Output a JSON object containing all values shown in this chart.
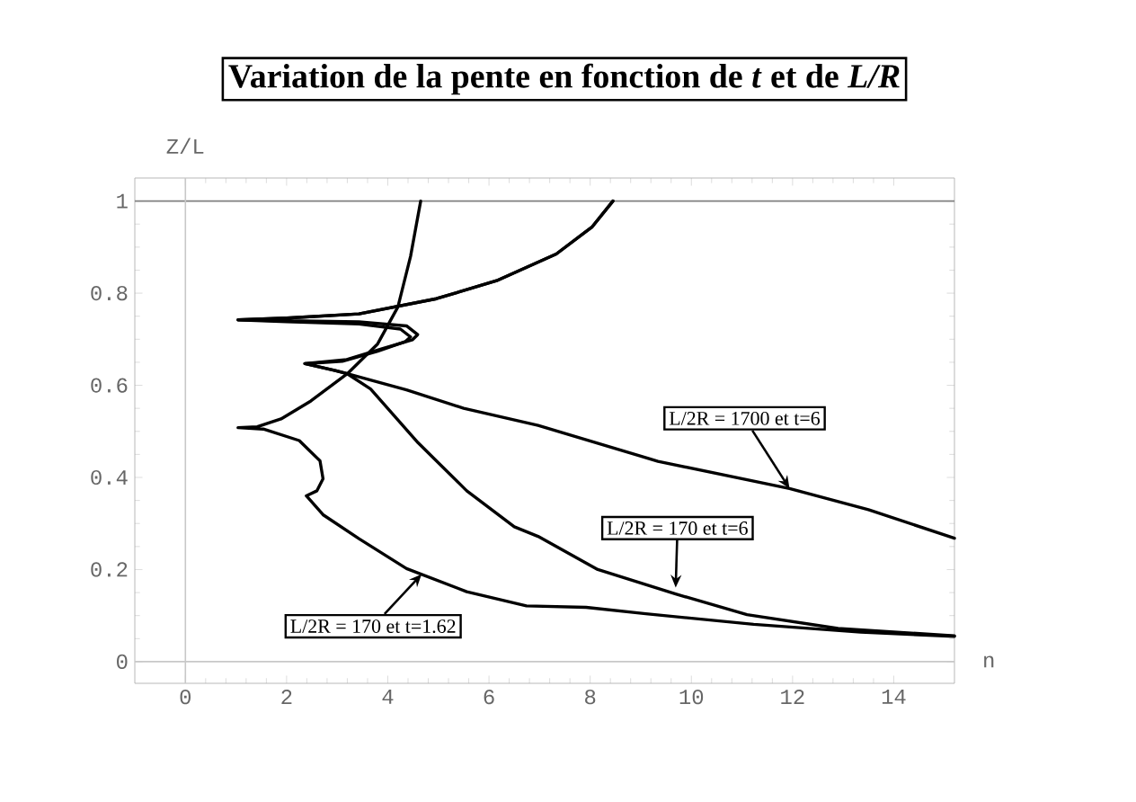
{
  "chart_data": {
    "type": "line",
    "title": "Variation de la pente en fonction de *t* et de *L/R*",
    "xlabel": "n",
    "ylabel": "Z/L",
    "xlim": [
      -1,
      15.2
    ],
    "ylim": [
      -0.047,
      1.05
    ],
    "xticks": [
      0,
      2,
      4,
      6,
      8,
      10,
      12,
      14
    ],
    "yticks": [
      0,
      0.2,
      0.4,
      0.6,
      0.8,
      1
    ],
    "grid": false,
    "marker": "none",
    "line_style": "solid",
    "ref_lines": [
      {
        "axis": "y",
        "value": 1,
        "color": "#808080"
      },
      {
        "axis": "x",
        "value": 0,
        "color": "#c8c8c8"
      },
      {
        "axis": "y",
        "value": 0,
        "color": "#c8c8c8"
      }
    ],
    "series": [
      {
        "color": "#000000",
        "x": [
          4.65,
          4.45,
          4.2,
          3.8,
          3.2,
          2.48,
          1.89,
          1.42,
          1.04,
          1.54,
          2.25,
          2.66,
          2.72,
          2.6,
          2.39,
          2.72,
          3.43,
          4.37,
          5.56,
          6.74,
          7.92,
          9.1,
          11.23,
          13.35,
          15.2
        ],
        "values": [
          1.0,
          0.88,
          0.77,
          0.69,
          0.625,
          0.566,
          0.527,
          0.51,
          0.508,
          0.505,
          0.48,
          0.436,
          0.397,
          0.371,
          0.36,
          0.319,
          0.267,
          0.202,
          0.152,
          0.121,
          0.118,
          0.104,
          0.081,
          0.064,
          0.055
        ]
      },
      {
        "color": "#000000",
        "x": [
          8.45,
          8.04,
          7.33,
          6.15,
          4.96,
          3.43,
          2.0,
          1.04,
          2.0,
          3.43,
          4.37,
          4.59,
          4.49,
          3.9,
          3.19,
          2.36,
          2.96,
          3.2,
          4.37,
          5.5,
          6.97,
          9.34,
          11.94,
          13.5,
          15.2
        ],
        "values": [
          1.0,
          0.944,
          0.885,
          0.827,
          0.788,
          0.755,
          0.746,
          0.742,
          0.74,
          0.738,
          0.729,
          0.71,
          0.699,
          0.68,
          0.656,
          0.647,
          0.632,
          0.625,
          0.59,
          0.55,
          0.513,
          0.435,
          0.376,
          0.33,
          0.268
        ]
      },
      {
        "color": "#000000",
        "x": [
          8.45,
          8.04,
          7.33,
          6.15,
          4.96,
          3.43,
          2.0,
          1.04,
          2.0,
          3.43,
          4.25,
          4.45,
          4.35,
          3.8,
          3.1,
          2.36,
          2.96,
          3.2,
          3.66,
          4.6,
          5.56,
          6.5,
          6.97,
          8.15,
          9.69,
          11.1,
          12.9,
          15.2
        ],
        "values": [
          1.0,
          0.944,
          0.885,
          0.827,
          0.788,
          0.755,
          0.746,
          0.742,
          0.738,
          0.733,
          0.722,
          0.705,
          0.695,
          0.674,
          0.652,
          0.647,
          0.632,
          0.625,
          0.592,
          0.475,
          0.371,
          0.293,
          0.272,
          0.2,
          0.147,
          0.102,
          0.072,
          0.056
        ]
      }
    ],
    "annotations": [
      {
        "text": "L/2R = 1700 et t=6",
        "x": 11.94,
        "y": 0.376
      },
      {
        "text": "L/2R = 170 et t=6",
        "x": 9.69,
        "y": 0.161
      },
      {
        "text": "L/2R = 170 et t=1.62",
        "x": 4.67,
        "y": 0.19
      }
    ]
  }
}
